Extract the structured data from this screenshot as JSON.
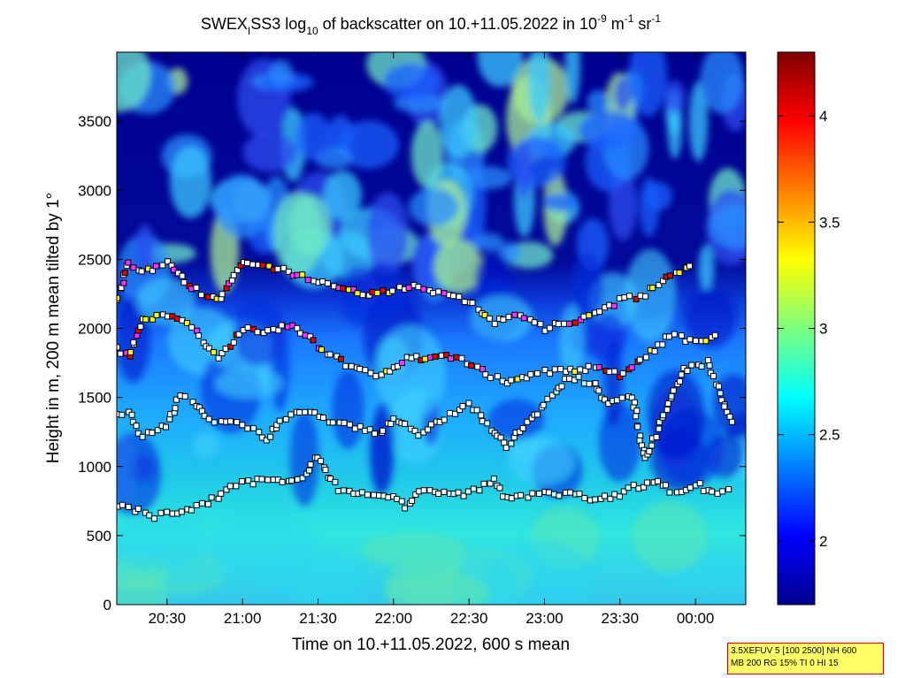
{
  "chart_data": {
    "type": "heatmap",
    "title": {
      "main1": "SWEX",
      "sub1": "I",
      "main2": "SS3 log",
      "sub2": "10",
      "main3": " of backscatter on 10.+11.05.2022 in 10",
      "sup1": "-9",
      "main4": " m",
      "sup2": "-1",
      "main5": " sr",
      "sup3": "-1"
    },
    "xlabel": "Time on 10.+11.05.2022, 600 s mean",
    "ylabel": "Height in m, 200 m mean tilted by 1°",
    "x_range": [
      "20:10",
      "00:20"
    ],
    "x_ticks": [
      "20:30",
      "21:00",
      "21:30",
      "22:00",
      "22:30",
      "23:00",
      "23:30",
      "00:00"
    ],
    "y_range": [
      0,
      4000
    ],
    "y_ticks": [
      0,
      500,
      1000,
      1500,
      2000,
      2500,
      3000,
      3500
    ],
    "colorbar": {
      "range": [
        1.7,
        4.3
      ],
      "ticks": [
        "2",
        "2.5",
        "3",
        "3.5",
        "4"
      ],
      "colormap": "jet"
    },
    "cloud_layers": [
      {
        "name": "low layer",
        "points": [
          [
            "20:10",
            710
          ],
          [
            "20:15",
            700
          ],
          [
            "20:25",
            640
          ],
          [
            "20:30",
            670
          ],
          [
            "20:40",
            690
          ],
          [
            "20:50",
            780
          ],
          [
            "20:55",
            870
          ],
          [
            "21:00",
            880
          ],
          [
            "21:10",
            900
          ],
          [
            "21:20",
            880
          ],
          [
            "21:25",
            950
          ],
          [
            "21:30",
            1080
          ],
          [
            "21:35",
            900
          ],
          [
            "21:40",
            810
          ],
          [
            "21:50",
            800
          ],
          [
            "22:00",
            790
          ],
          [
            "22:05",
            700
          ],
          [
            "22:10",
            830
          ],
          [
            "22:20",
            810
          ],
          [
            "22:30",
            800
          ],
          [
            "22:40",
            900
          ],
          [
            "22:45",
            760
          ],
          [
            "22:55",
            790
          ],
          [
            "23:00",
            800
          ],
          [
            "23:10",
            810
          ],
          [
            "23:20",
            760
          ],
          [
            "23:30",
            800
          ],
          [
            "23:35",
            850
          ],
          [
            "23:45",
            880
          ],
          [
            "23:50",
            830
          ],
          [
            "23:55",
            800
          ],
          [
            "00:00",
            880
          ],
          [
            "00:05",
            820
          ],
          [
            "00:15",
            820
          ]
        ]
      },
      {
        "name": "middle layer",
        "points": [
          [
            "20:10",
            1380
          ],
          [
            "20:15",
            1400
          ],
          [
            "20:20",
            1220
          ],
          [
            "20:30",
            1300
          ],
          [
            "20:35",
            1500
          ],
          [
            "20:40",
            1480
          ],
          [
            "20:45",
            1350
          ],
          [
            "21:00",
            1300
          ],
          [
            "21:10",
            1200
          ],
          [
            "21:15",
            1350
          ],
          [
            "21:25",
            1400
          ],
          [
            "21:40",
            1300
          ],
          [
            "21:55",
            1240
          ],
          [
            "22:00",
            1350
          ],
          [
            "22:10",
            1240
          ],
          [
            "22:20",
            1350
          ],
          [
            "22:30",
            1450
          ],
          [
            "22:40",
            1250
          ],
          [
            "22:45",
            1150
          ],
          [
            "23:00",
            1450
          ],
          [
            "23:10",
            1650
          ],
          [
            "23:20",
            1600
          ],
          [
            "23:25",
            1450
          ],
          [
            "23:35",
            1500
          ],
          [
            "23:40",
            1050
          ],
          [
            "23:55",
            1700
          ],
          [
            "00:05",
            1750
          ],
          [
            "00:15",
            1280
          ]
        ]
      },
      {
        "name": "upper layer",
        "points": [
          [
            "20:10",
            1850
          ],
          [
            "20:15",
            1800
          ],
          [
            "20:20",
            2050
          ],
          [
            "20:30",
            2100
          ],
          [
            "20:40",
            2000
          ],
          [
            "20:50",
            1800
          ],
          [
            "20:55",
            1880
          ],
          [
            "21:00",
            2000
          ],
          [
            "21:10",
            1980
          ],
          [
            "21:20",
            2020
          ],
          [
            "21:25",
            1950
          ],
          [
            "21:35",
            1800
          ],
          [
            "21:45",
            1700
          ],
          [
            "21:55",
            1650
          ],
          [
            "22:05",
            1780
          ],
          [
            "22:15",
            1780
          ],
          [
            "22:25",
            1800
          ],
          [
            "22:35",
            1700
          ],
          [
            "22:45",
            1600
          ],
          [
            "22:55",
            1650
          ],
          [
            "23:00",
            1680
          ],
          [
            "23:10",
            1700
          ],
          [
            "23:20",
            1720
          ],
          [
            "23:30",
            1660
          ],
          [
            "23:40",
            1800
          ],
          [
            "23:50",
            1950
          ],
          [
            "00:00",
            1900
          ],
          [
            "00:10",
            1950
          ]
        ]
      },
      {
        "name": "top layer",
        "points": [
          [
            "20:10",
            2200
          ],
          [
            "20:15",
            2480
          ],
          [
            "20:20",
            2400
          ],
          [
            "20:30",
            2480
          ],
          [
            "20:40",
            2300
          ],
          [
            "20:50",
            2200
          ],
          [
            "21:00",
            2480
          ],
          [
            "21:10",
            2450
          ],
          [
            "21:20",
            2400
          ],
          [
            "21:30",
            2350
          ],
          [
            "21:40",
            2300
          ],
          [
            "21:50",
            2250
          ],
          [
            "22:00",
            2280
          ],
          [
            "22:10",
            2300
          ],
          [
            "22:20",
            2250
          ],
          [
            "22:30",
            2200
          ],
          [
            "22:40",
            2050
          ],
          [
            "22:50",
            2100
          ],
          [
            "23:00",
            2000
          ],
          [
            "23:10",
            2050
          ],
          [
            "23:20",
            2100
          ],
          [
            "23:30",
            2200
          ],
          [
            "23:40",
            2250
          ],
          [
            "23:50",
            2400
          ],
          [
            "00:00",
            2450
          ]
        ]
      }
    ]
  },
  "info_box": {
    "line1": "3.5XEFUV 5 [100 2500] NH 600",
    "line2": "MB 200 RG 15% TI 0 HI 15"
  }
}
